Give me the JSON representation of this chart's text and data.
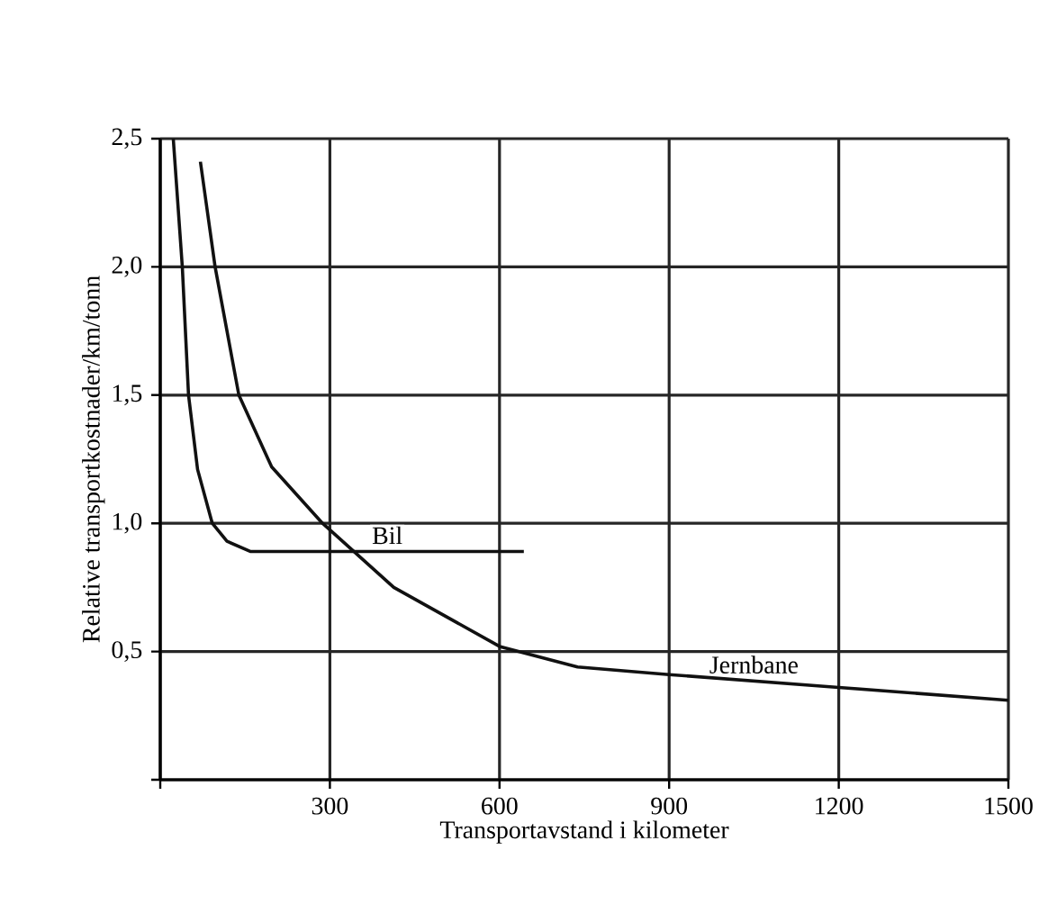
{
  "chart_data": {
    "type": "line",
    "xlabel": "Transportavstand i kilometer",
    "ylabel": "Relative transportkostnader/km/tonn",
    "xlim": [
      0,
      1500
    ],
    "ylim": [
      0,
      2.5
    ],
    "xticks": [
      {
        "value": 0,
        "label": null
      },
      300,
      600,
      900,
      1200,
      1500
    ],
    "yticks": [
      {
        "value": 0,
        "label": null
      },
      {
        "value": 0.5,
        "label": "0,5"
      },
      {
        "value": 1.0,
        "label": "1,0"
      },
      {
        "value": 1.5,
        "label": "1,5"
      },
      {
        "value": 2.0,
        "label": "2,0"
      },
      {
        "value": 2.5,
        "label": "2,5"
      }
    ],
    "grid": true,
    "legend": false,
    "marker": "none",
    "line_style": "solid",
    "series": [
      {
        "name": "Bil",
        "color": "#111111",
        "x": [
          23,
          39,
          50,
          66,
          92,
          118,
          160,
          643
        ],
        "values": [
          2.5,
          2.0,
          1.5,
          1.21,
          1.0,
          0.93,
          0.89,
          0.89
        ]
      },
      {
        "name": "Jernbane",
        "color": "#111111",
        "x": [
          71,
          97,
          139,
          197,
          287,
          413,
          600,
          738,
          900,
          1200,
          1500
        ],
        "values": [
          2.41,
          2.0,
          1.5,
          1.22,
          1.0,
          0.75,
          0.52,
          0.44,
          0.41,
          0.36,
          0.31
        ]
      }
    ]
  }
}
